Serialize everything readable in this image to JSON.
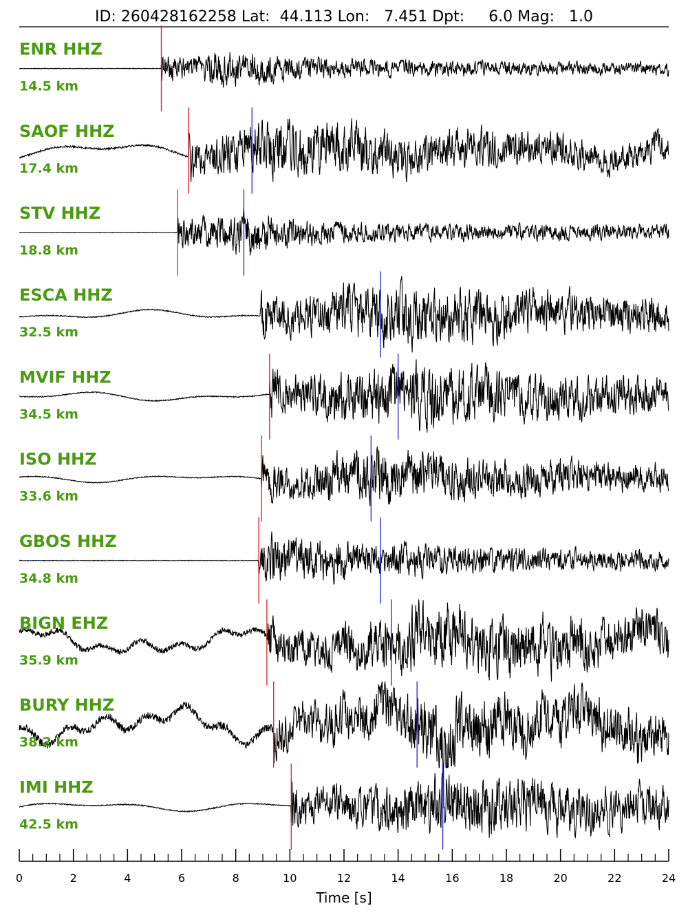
{
  "header": {
    "id_label": "ID:",
    "id_value": "260428162258",
    "lat_label": "Lat:",
    "lat_value": "44.113",
    "lon_label": "Lon:",
    "lon_value": "7.451",
    "dpt_label": "Dpt:",
    "dpt_value": "6.0",
    "mag_label": "Mag:",
    "mag_value": "1.0"
  },
  "colors": {
    "label": "#4a9a12",
    "trace": "#000000",
    "p_pick": "#e31a1c",
    "s_pick": "#1f1fd6"
  },
  "chart_data": {
    "type": "line",
    "xlabel": "Time [s]",
    "xlim": [
      0,
      24
    ],
    "x_ticks": [
      "0",
      "2",
      "4",
      "6",
      "8",
      "10",
      "12",
      "14",
      "16",
      "18",
      "20",
      "22",
      "24"
    ],
    "minor_tick_step": 0.5,
    "traces": [
      {
        "station": "ENR HHZ",
        "distance": "14.5 km",
        "p_pick": 5.25,
        "s_pick": null,
        "onset": 5.25,
        "pre_style": "flat",
        "peak_time": 7.6,
        "decay": 4.0,
        "noise_amp": 0.05,
        "sig_amp": 0.45
      },
      {
        "station": "SAOF HHZ",
        "distance": "17.4 km",
        "p_pick": 6.25,
        "s_pick": 8.6,
        "onset": 6.25,
        "pre_style": "swell",
        "peak_time": 9.3,
        "decay": 9.0,
        "noise_amp": 0.22,
        "sig_amp": 0.75
      },
      {
        "station": "STV HHZ",
        "distance": "18.8 km",
        "p_pick": 5.85,
        "s_pick": 8.3,
        "onset": 5.85,
        "pre_style": "flat",
        "peak_time": 8.4,
        "decay": 2.6,
        "noise_amp": 0.04,
        "sig_amp": 0.55
      },
      {
        "station": "ESCA HHZ",
        "distance": "32.5 km",
        "p_pick": null,
        "s_pick": 13.35,
        "onset": 8.9,
        "pre_style": "swell",
        "peak_time": 14.0,
        "decay": 9.0,
        "noise_amp": 0.12,
        "sig_amp": 0.8
      },
      {
        "station": "MVIF HHZ",
        "distance": "34.5 km",
        "p_pick": 9.25,
        "s_pick": 14.0,
        "onset": 9.25,
        "pre_style": "swell",
        "peak_time": 14.4,
        "decay": 7.0,
        "noise_amp": 0.12,
        "sig_amp": 0.85
      },
      {
        "station": "ISO HHZ",
        "distance": "33.6 km",
        "p_pick": 8.95,
        "s_pick": 13.0,
        "onset": 8.95,
        "pre_style": "swell",
        "peak_time": 13.3,
        "decay": 7.5,
        "noise_amp": 0.1,
        "sig_amp": 0.7
      },
      {
        "station": "GBOS HHZ",
        "distance": "34.8 km",
        "p_pick": 8.85,
        "s_pick": 13.35,
        "onset": 8.85,
        "pre_style": "flat",
        "peak_time": 9.2,
        "decay": 7.5,
        "noise_amp": 0.06,
        "sig_amp": 0.6
      },
      {
        "station": "BIGN EHZ",
        "distance": "35.9 km",
        "p_pick": 9.15,
        "s_pick": 13.75,
        "onset": 9.15,
        "pre_style": "noisy",
        "peak_time": 15.5,
        "decay": 14.0,
        "noise_amp": 0.3,
        "sig_amp": 0.8
      },
      {
        "station": "BURY HHZ",
        "distance": "38.2 km",
        "p_pick": 9.4,
        "s_pick": 14.7,
        "onset": 9.4,
        "pre_style": "noisy",
        "peak_time": 15.6,
        "decay": 14.0,
        "noise_amp": 0.4,
        "sig_amp": 0.85
      },
      {
        "station": "IMI HHZ",
        "distance": "42.5 km",
        "p_pick": 10.05,
        "s_pick": 15.65,
        "onset": 10.05,
        "pre_style": "swell",
        "peak_time": 16.3,
        "decay": 9.0,
        "noise_amp": 0.12,
        "sig_amp": 0.8
      }
    ]
  }
}
